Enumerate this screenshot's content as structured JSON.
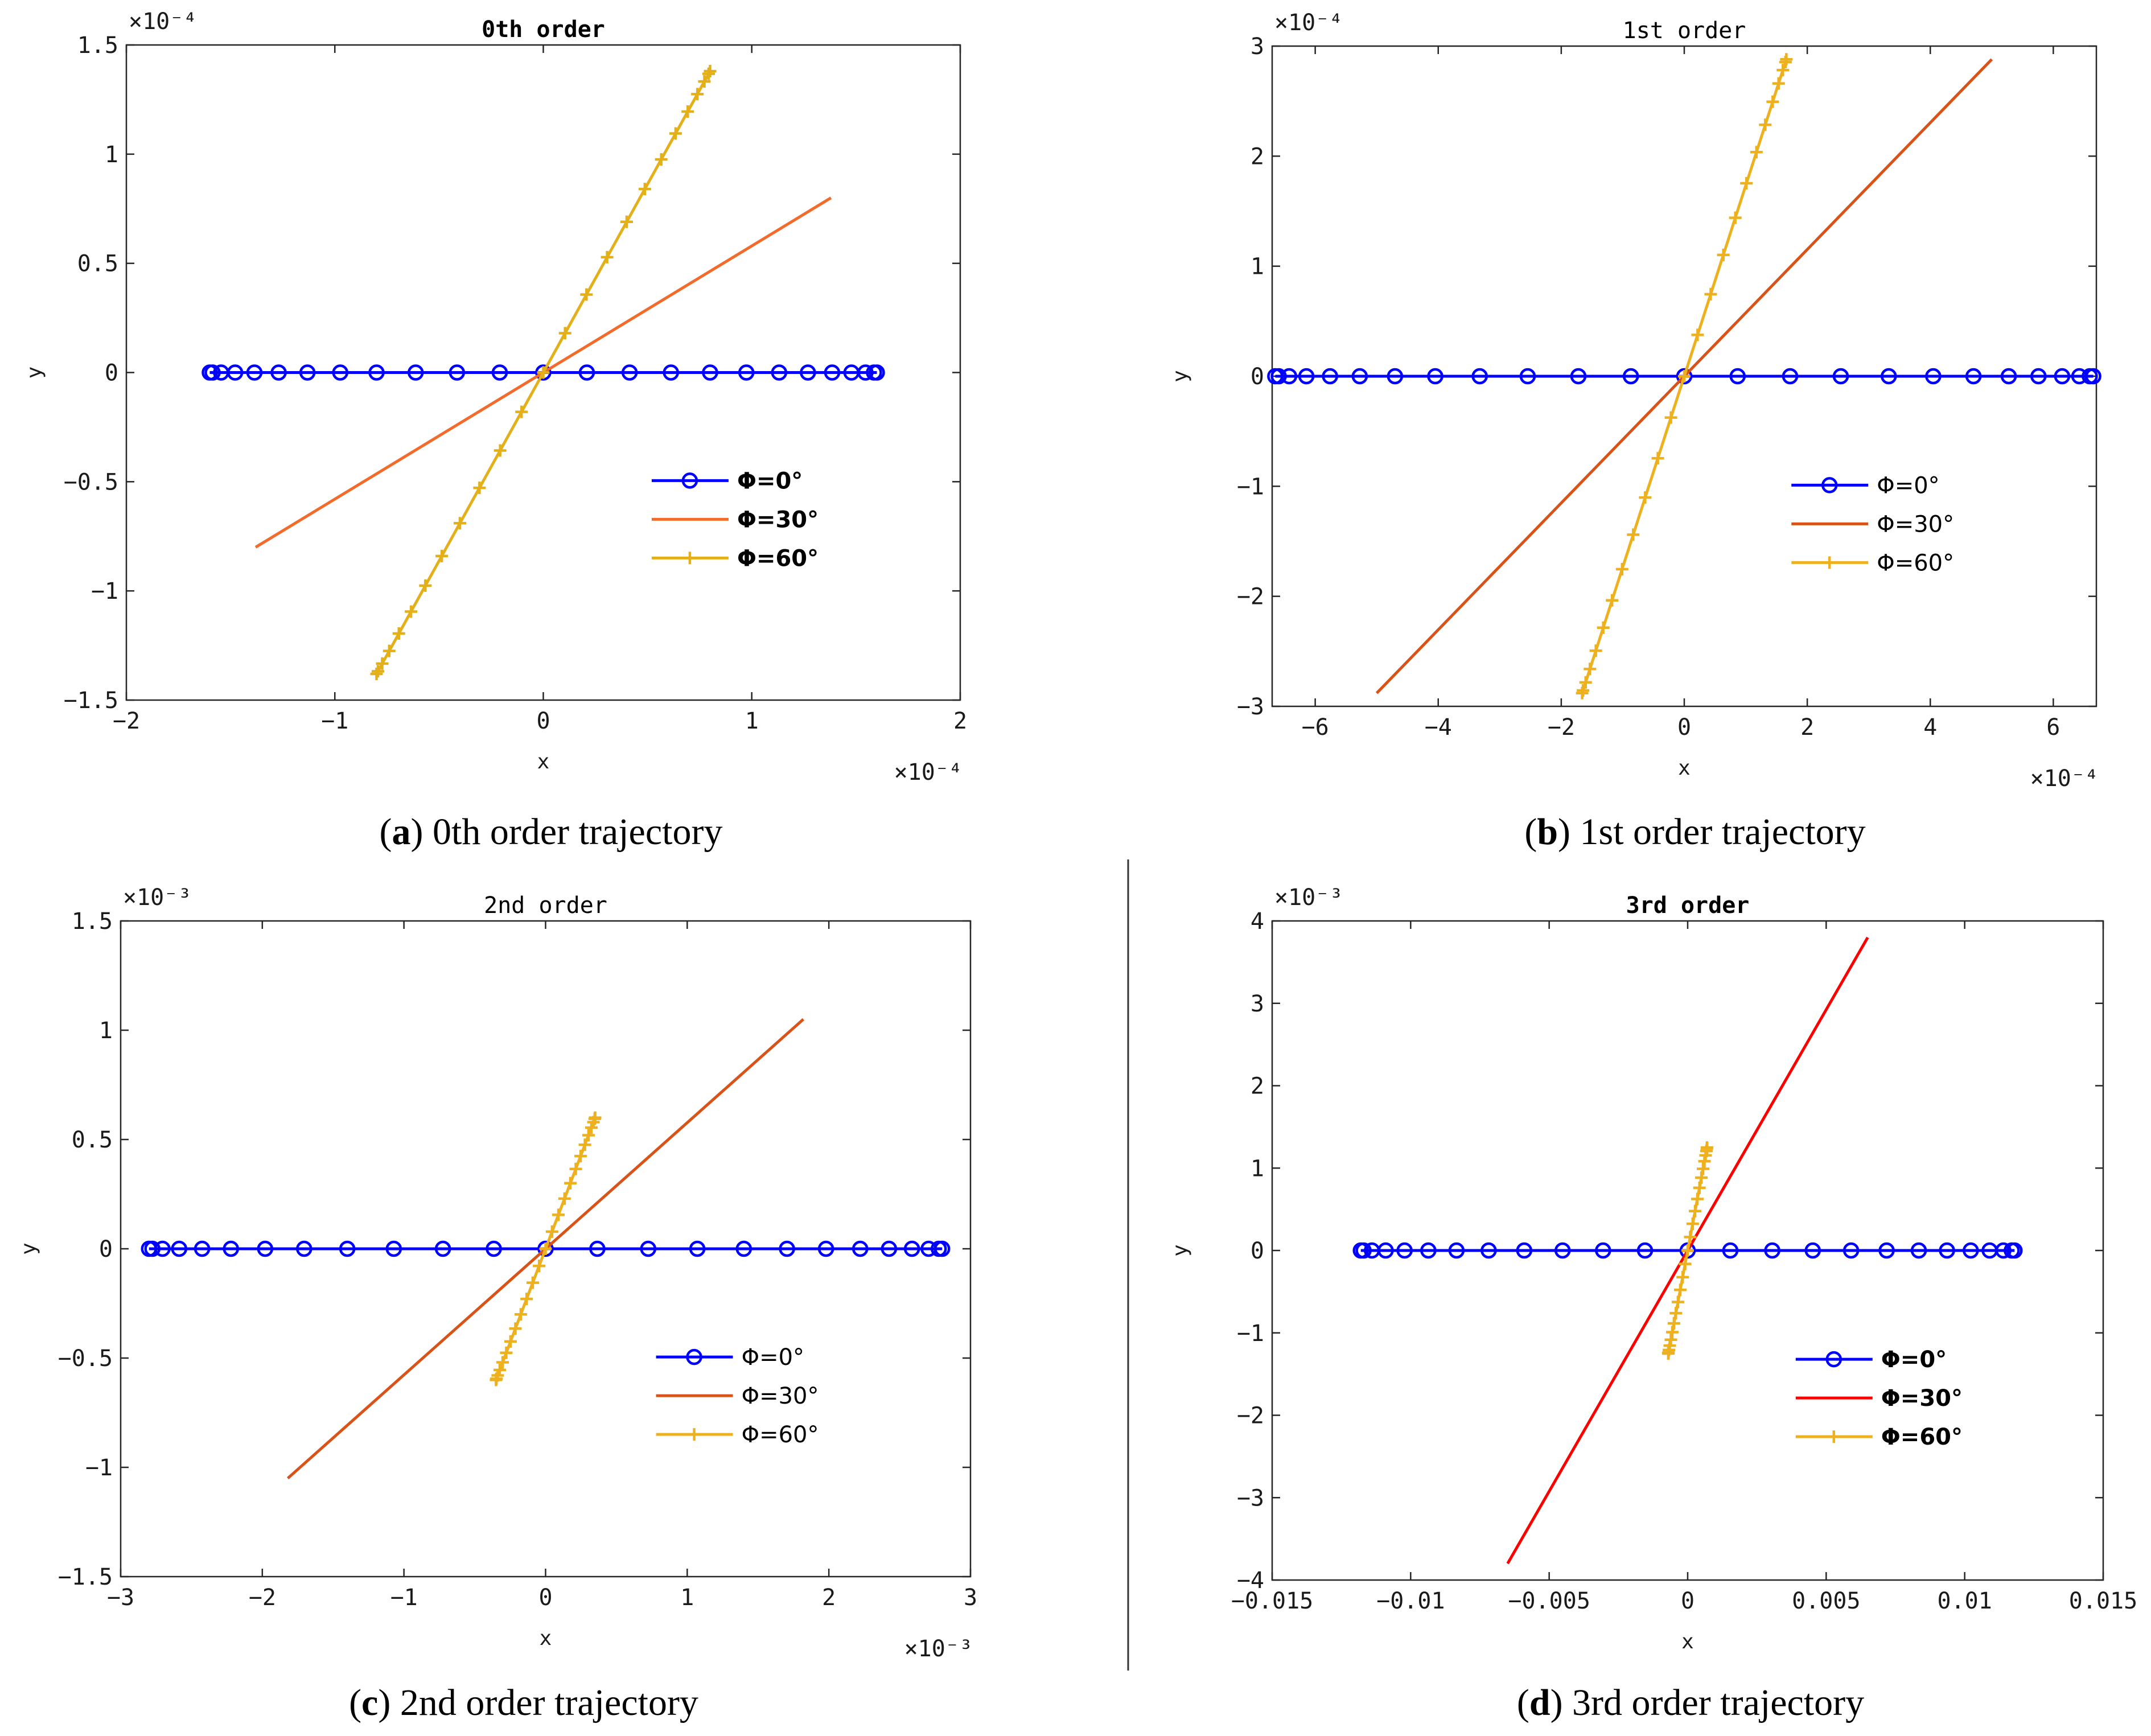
{
  "chart_data": [
    {
      "type": "line",
      "title": "0th order",
      "title_bold": true,
      "caption_letter": "a",
      "caption_text": " 0th order trajectory",
      "xlabel": "x",
      "ylabel": "y",
      "x_multiplier": "×10⁻⁴",
      "y_multiplier": "×10⁻⁴",
      "xlim": [
        -2,
        2
      ],
      "ylim": [
        -1.5,
        1.5
      ],
      "xticks": [
        -2,
        -1,
        0,
        1,
        2
      ],
      "xtick_labels": [
        "−2",
        "−1",
        "0",
        "1",
        "2"
      ],
      "yticks": [
        -1.5,
        -1,
        -0.5,
        0,
        0.5,
        1,
        1.5
      ],
      "ytick_labels": [
        "−1.5",
        "−1",
        "−0.5",
        "0",
        "0.5",
        "1",
        "1.5"
      ],
      "legend_position": "bottom-right",
      "legend_bold": true,
      "grid": false,
      "series": [
        {
          "name": "Φ=0°",
          "color": "#0000ff",
          "marker": "circle",
          "x_start": -1.6,
          "y_start": 0,
          "x_end": 1.6,
          "y_end": 0
        },
        {
          "name": "Φ=30°",
          "color": "#f26b2b",
          "marker": "none",
          "x_start": -1.38,
          "y_start": -0.8,
          "x_end": 1.38,
          "y_end": 0.8
        },
        {
          "name": "Φ=60°",
          "color": "#e3b01a",
          "marker": "plus",
          "x_start": -0.8,
          "y_start": -1.38,
          "x_end": 0.8,
          "y_end": 1.38
        }
      ]
    },
    {
      "type": "line",
      "title": "1st order",
      "title_bold": false,
      "caption_letter": "b",
      "caption_text": " 1st order trajectory",
      "xlabel": "x",
      "ylabel": "y",
      "x_multiplier": "×10⁻⁴",
      "y_multiplier": "×10⁻⁴",
      "xlim": [
        -6.7,
        6.7
      ],
      "ylim": [
        -3,
        3
      ],
      "xticks": [
        -6,
        -4,
        -2,
        0,
        2,
        4,
        6
      ],
      "xtick_labels": [
        "−6",
        "−4",
        "−2",
        "0",
        "2",
        "4",
        "6"
      ],
      "yticks": [
        -3,
        -2,
        -1,
        0,
        1,
        2,
        3
      ],
      "ytick_labels": [
        "−3",
        "−2",
        "−1",
        "0",
        "1",
        "2",
        "3"
      ],
      "legend_position": "bottom-right",
      "legend_bold": false,
      "grid": false,
      "series": [
        {
          "name": "Φ=0°",
          "color": "#0000ff",
          "marker": "circle",
          "x_start": -6.65,
          "y_start": 0,
          "x_end": 6.65,
          "y_end": 0
        },
        {
          "name": "Φ=30°",
          "color": "#d95319",
          "marker": "none",
          "x_start": -5.0,
          "y_start": -2.88,
          "x_end": 5.0,
          "y_end": 2.88
        },
        {
          "name": "Φ=60°",
          "color": "#edb120",
          "marker": "plus",
          "x_start": -1.66,
          "y_start": -2.88,
          "x_end": 1.66,
          "y_end": 2.88
        }
      ]
    },
    {
      "type": "line",
      "title": "2nd order",
      "title_bold": false,
      "caption_letter": "c",
      "caption_text": " 2nd order trajectory",
      "xlabel": "x",
      "ylabel": "y",
      "x_multiplier": "×10⁻³",
      "y_multiplier": "×10⁻³",
      "xlim": [
        -3,
        3
      ],
      "ylim": [
        -1.5,
        1.5
      ],
      "xticks": [
        -3,
        -2,
        -1,
        0,
        1,
        2,
        3
      ],
      "xtick_labels": [
        "−3",
        "−2",
        "−1",
        "0",
        "1",
        "2",
        "3"
      ],
      "yticks": [
        -1.5,
        -1,
        -0.5,
        0,
        0.5,
        1,
        1.5
      ],
      "ytick_labels": [
        "−1.5",
        "−1",
        "−0.5",
        "0",
        "0.5",
        "1",
        "1.5"
      ],
      "legend_position": "bottom-right",
      "legend_bold": false,
      "grid": false,
      "series": [
        {
          "name": "Φ=0°",
          "color": "#0000ff",
          "marker": "circle",
          "x_start": -2.8,
          "y_start": 0,
          "x_end": 2.8,
          "y_end": 0
        },
        {
          "name": "Φ=30°",
          "color": "#d95319",
          "marker": "none",
          "x_start": -1.82,
          "y_start": -1.05,
          "x_end": 1.82,
          "y_end": 1.05
        },
        {
          "name": "Φ=60°",
          "color": "#edb120",
          "marker": "plus",
          "x_start": -0.35,
          "y_start": -0.6,
          "x_end": 0.35,
          "y_end": 0.6
        }
      ]
    },
    {
      "type": "line",
      "title": "3rd order",
      "title_bold": true,
      "caption_letter": "d",
      "caption_text": " 3rd order trajectory",
      "xlabel": "x",
      "ylabel": "y",
      "x_multiplier": "",
      "y_multiplier": "×10⁻³",
      "xlim": [
        -0.015,
        0.015
      ],
      "ylim": [
        -4,
        4
      ],
      "xticks": [
        -0.015,
        -0.01,
        -0.005,
        0,
        0.005,
        0.01,
        0.015
      ],
      "xtick_labels": [
        "−0.015",
        "−0.01",
        "−0.005",
        "0",
        "0.005",
        "0.01",
        "0.015"
      ],
      "yticks": [
        -4,
        -3,
        -2,
        -1,
        0,
        1,
        2,
        3,
        4
      ],
      "ytick_labels": [
        "−4",
        "−3",
        "−2",
        "−1",
        "0",
        "1",
        "2",
        "3",
        "4"
      ],
      "legend_position": "bottom-right",
      "legend_bold": true,
      "grid": false,
      "series": [
        {
          "name": "Φ=0°",
          "color": "#0000ff",
          "marker": "circle",
          "x_start": -0.0118,
          "y_start": 0,
          "x_end": 0.0118,
          "y_end": 0
        },
        {
          "name": "Φ=30°",
          "color": "#ff0000",
          "marker": "none",
          "x_start": -0.0065,
          "y_start": -3.8,
          "x_end": 0.0065,
          "y_end": 3.8
        },
        {
          "name": "Φ=60°",
          "color": "#edb120",
          "marker": "plus",
          "x_start": -0.0007,
          "y_start": -1.25,
          "x_end": 0.0007,
          "y_end": 1.25
        }
      ]
    }
  ]
}
